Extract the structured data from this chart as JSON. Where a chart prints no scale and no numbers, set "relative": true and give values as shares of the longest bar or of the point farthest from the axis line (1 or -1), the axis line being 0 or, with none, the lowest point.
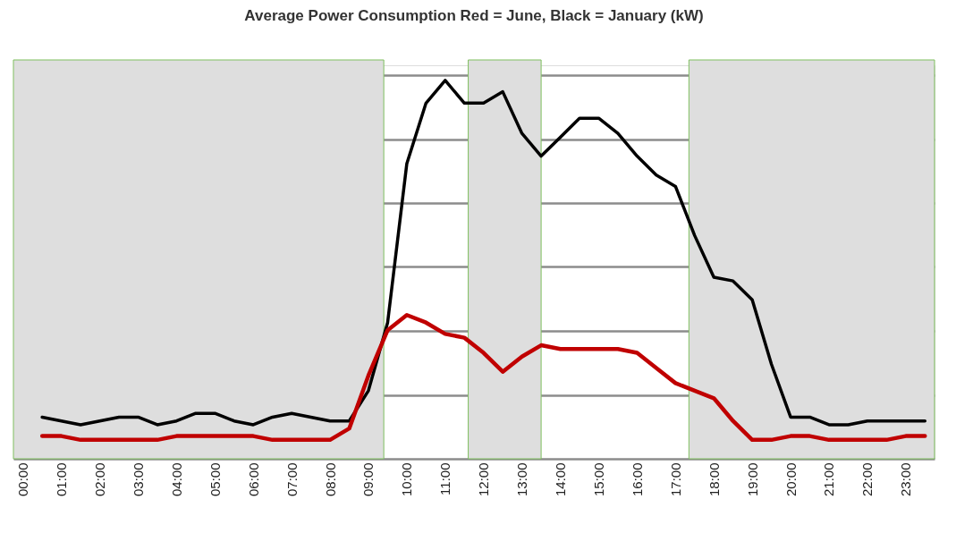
{
  "chart_data": {
    "type": "line",
    "title": "Average Power Consumption  Red = June, Black = January (kW)",
    "relative": true,
    "x": [
      0.5,
      1,
      1.5,
      2,
      2.5,
      3,
      3.5,
      4,
      4.5,
      5,
      5.5,
      6,
      6.5,
      7,
      7.5,
      8,
      8.5,
      9,
      9.5,
      10,
      10.5,
      11,
      11.5,
      12,
      12.5,
      13,
      13.5,
      14,
      14.5,
      15,
      15.5,
      16,
      16.5,
      17,
      17.5,
      18,
      18.5,
      19,
      19.5,
      20,
      20.5,
      21,
      21.5,
      22,
      22.5,
      23,
      23.5
    ],
    "series": [
      {
        "color": "#000000",
        "values": [
          0.11,
          0.1,
          0.09,
          0.1,
          0.11,
          0.11,
          0.09,
          0.1,
          0.12,
          0.12,
          0.1,
          0.09,
          0.11,
          0.12,
          0.11,
          0.1,
          0.1,
          0.18,
          0.36,
          0.78,
          0.94,
          1,
          0.94,
          0.94,
          0.97,
          0.86,
          0.8,
          0.85,
          0.9,
          0.9,
          0.86,
          0.8,
          0.75,
          0.72,
          0.59,
          0.48,
          0.47,
          0.42,
          0.25,
          0.11,
          0.11,
          0.09,
          0.09,
          0.1,
          0.1,
          0.1,
          0.1
        ]
      },
      {
        "color": "#c00000",
        "values": [
          0.06,
          0.06,
          0.05,
          0.05,
          0.05,
          0.05,
          0.05,
          0.06,
          0.06,
          0.06,
          0.06,
          0.06,
          0.05,
          0.05,
          0.05,
          0.05,
          0.08,
          0.22,
          0.34,
          0.38,
          0.36,
          0.33,
          0.32,
          0.28,
          0.23,
          0.27,
          0.3,
          0.29,
          0.29,
          0.29,
          0.29,
          0.28,
          0.24,
          0.2,
          0.18,
          0.16,
          0.1,
          0.05,
          0.05,
          0.06,
          0.06,
          0.05,
          0.05,
          0.05,
          0.05,
          0.06,
          0.06
        ]
      }
    ],
    "xlim": [
      -0.25,
      23.75
    ],
    "xticks": [
      {
        "value": 0,
        "label": "00:00"
      },
      {
        "value": 1,
        "label": "01:00"
      },
      {
        "value": 2,
        "label": "02:00"
      },
      {
        "value": 3,
        "label": "03:00"
      },
      {
        "value": 4,
        "label": "04:00"
      },
      {
        "value": 5,
        "label": "05:00"
      },
      {
        "value": 6,
        "label": "06:00"
      },
      {
        "value": 7,
        "label": "07:00"
      },
      {
        "value": 8,
        "label": "08:00"
      },
      {
        "value": 9,
        "label": "09:00"
      },
      {
        "value": 10,
        "label": "10:00"
      },
      {
        "value": 11,
        "label": "11:00"
      },
      {
        "value": 12,
        "label": "12:00"
      },
      {
        "value": 13,
        "label": "13:00"
      },
      {
        "value": 14,
        "label": "14:00"
      },
      {
        "value": 15,
        "label": "15:00"
      },
      {
        "value": 16,
        "label": "16:00"
      },
      {
        "value": 17,
        "label": "17:00"
      },
      {
        "value": 18,
        "label": "18:00"
      },
      {
        "value": 19,
        "label": "19:00"
      },
      {
        "value": 20,
        "label": "20:00"
      },
      {
        "value": 21,
        "label": "21:00"
      },
      {
        "value": 22,
        "label": "22:00"
      },
      {
        "value": 23,
        "label": "23:00"
      }
    ],
    "bands": [
      {
        "axis": "x",
        "from": -0.25,
        "to": 9.4,
        "color": "#dedede"
      },
      {
        "axis": "x",
        "from": 11.6,
        "to": 13.5,
        "color": "#dedede"
      },
      {
        "axis": "x",
        "from": 17.35,
        "to": 23.75,
        "color": "#dedede"
      }
    ],
    "grid": "y",
    "tick_labels": "x",
    "line_style": "solid",
    "marker": "none"
  }
}
